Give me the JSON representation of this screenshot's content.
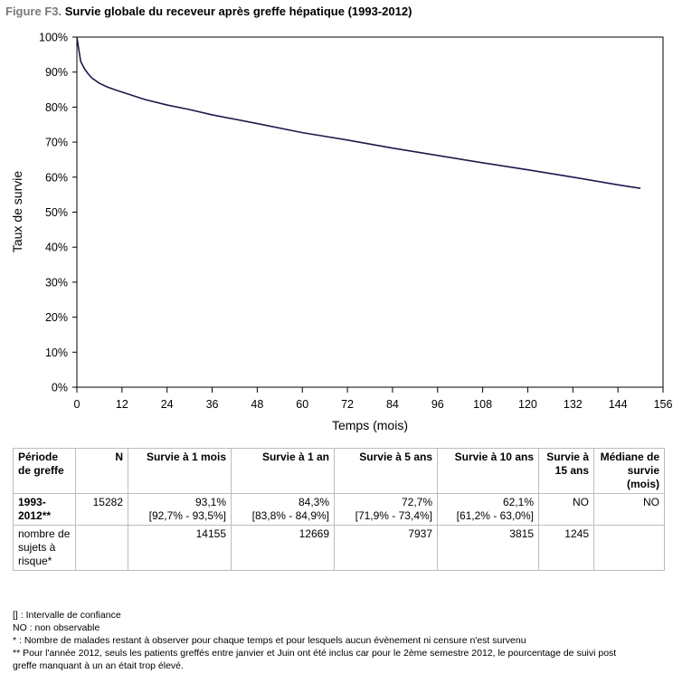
{
  "figure": {
    "prefix": "Figure F3.",
    "title": "Survie globale du receveur après greffe hépatique (1993-2012)"
  },
  "chart_data": {
    "type": "line",
    "xlabel": "Temps (mois)",
    "ylabel": "Taux de survie",
    "xlim": [
      0,
      156
    ],
    "ylim": [
      0,
      100
    ],
    "x_ticks": [
      "0",
      "12",
      "24",
      "36",
      "48",
      "60",
      "72",
      "84",
      "96",
      "108",
      "120",
      "132",
      "144",
      "156"
    ],
    "y_ticks": [
      "0%",
      "10%",
      "20%",
      "30%",
      "40%",
      "50%",
      "60%",
      "70%",
      "80%",
      "90%",
      "100%"
    ],
    "grid": false,
    "line_color": "#1c1a4e",
    "series": [
      {
        "x": [
          0,
          0.5,
          1,
          2,
          3,
          4,
          6,
          8,
          10,
          12,
          18,
          24,
          30,
          36,
          48,
          60,
          72,
          84,
          96,
          108,
          120,
          132,
          144,
          150
        ],
        "y": [
          100,
          96.5,
          93.1,
          91,
          89.5,
          88.3,
          86.8,
          85.8,
          85,
          84.3,
          82.2,
          80.6,
          79.3,
          77.8,
          75.3,
          72.7,
          70.6,
          68.3,
          66.2,
          64.1,
          62.1,
          60,
          57.8,
          56.8
        ]
      }
    ]
  },
  "table": {
    "headers": [
      "Période de greffe",
      "N",
      "Survie à 1 mois",
      "Survie à 1 an",
      "Survie à 5 ans",
      "Survie à 10 ans",
      "Survie à 15 ans",
      "Médiane de survie (mois)"
    ],
    "row1": {
      "label": "1993-2012**",
      "n": "15282",
      "m1": "93,1%",
      "m1_ci": "[92,7% - 93,5%]",
      "y1": "84,3%",
      "y1_ci": "[83,8% - 84,9%]",
      "y5": "72,7%",
      "y5_ci": "[71,9% - 73,4%]",
      "y10": "62,1%",
      "y10_ci": "[61,2% - 63,0%]",
      "y15": "NO",
      "median": "NO"
    },
    "row2": {
      "label": "nombre de sujets à risque*",
      "n": "",
      "m1": "14155",
      "y1": "12669",
      "y5": "7937",
      "y10": "3815",
      "y15": "1245",
      "median": ""
    }
  },
  "notes": [
    "[] : Intervalle de confiance",
    "NO : non observable",
    "* : Nombre de malades restant à observer pour chaque temps et pour lesquels aucun évènement ni censure n'est survenu",
    "** Pour l'année 2012, seuls les patients greffés entre janvier et Juin ont été inclus car pour le 2ème semestre 2012, le pourcentage de suivi post",
    "greffe manquant à un an était trop élevé."
  ]
}
